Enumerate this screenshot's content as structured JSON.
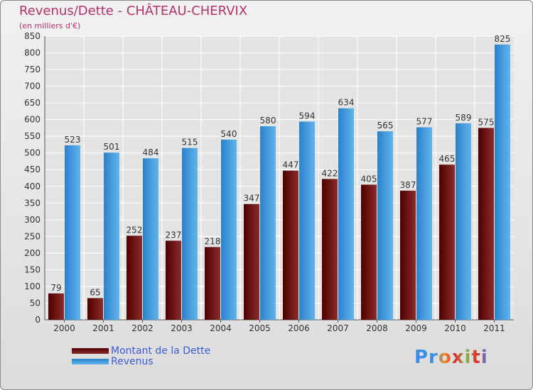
{
  "chart_data": {
    "type": "bar",
    "title": "Revenus/Dette - CHÂTEAU-CHERVIX",
    "subtitle": "(en milliers d'€)",
    "categories": [
      "2000",
      "2001",
      "2002",
      "2003",
      "2004",
      "2005",
      "2006",
      "2007",
      "2008",
      "2009",
      "2010",
      "2011"
    ],
    "series": [
      {
        "name": "Montant de la Dette",
        "color": "#7a1e1e",
        "values": [
          79,
          65,
          252,
          237,
          218,
          347,
          447,
          422,
          405,
          387,
          465,
          575
        ]
      },
      {
        "name": "Revenus",
        "color": "#4ea3e6",
        "values": [
          523,
          501,
          484,
          515,
          540,
          580,
          594,
          634,
          565,
          577,
          589,
          825
        ]
      }
    ],
    "ylim": [
      0,
      850
    ],
    "yticks": [
      0,
      50,
      100,
      150,
      200,
      250,
      300,
      350,
      400,
      450,
      500,
      550,
      600,
      650,
      700,
      750,
      800,
      850
    ],
    "grid": true,
    "legend": "bottom-left"
  },
  "branding": {
    "logo_text": "Proxiti"
  }
}
